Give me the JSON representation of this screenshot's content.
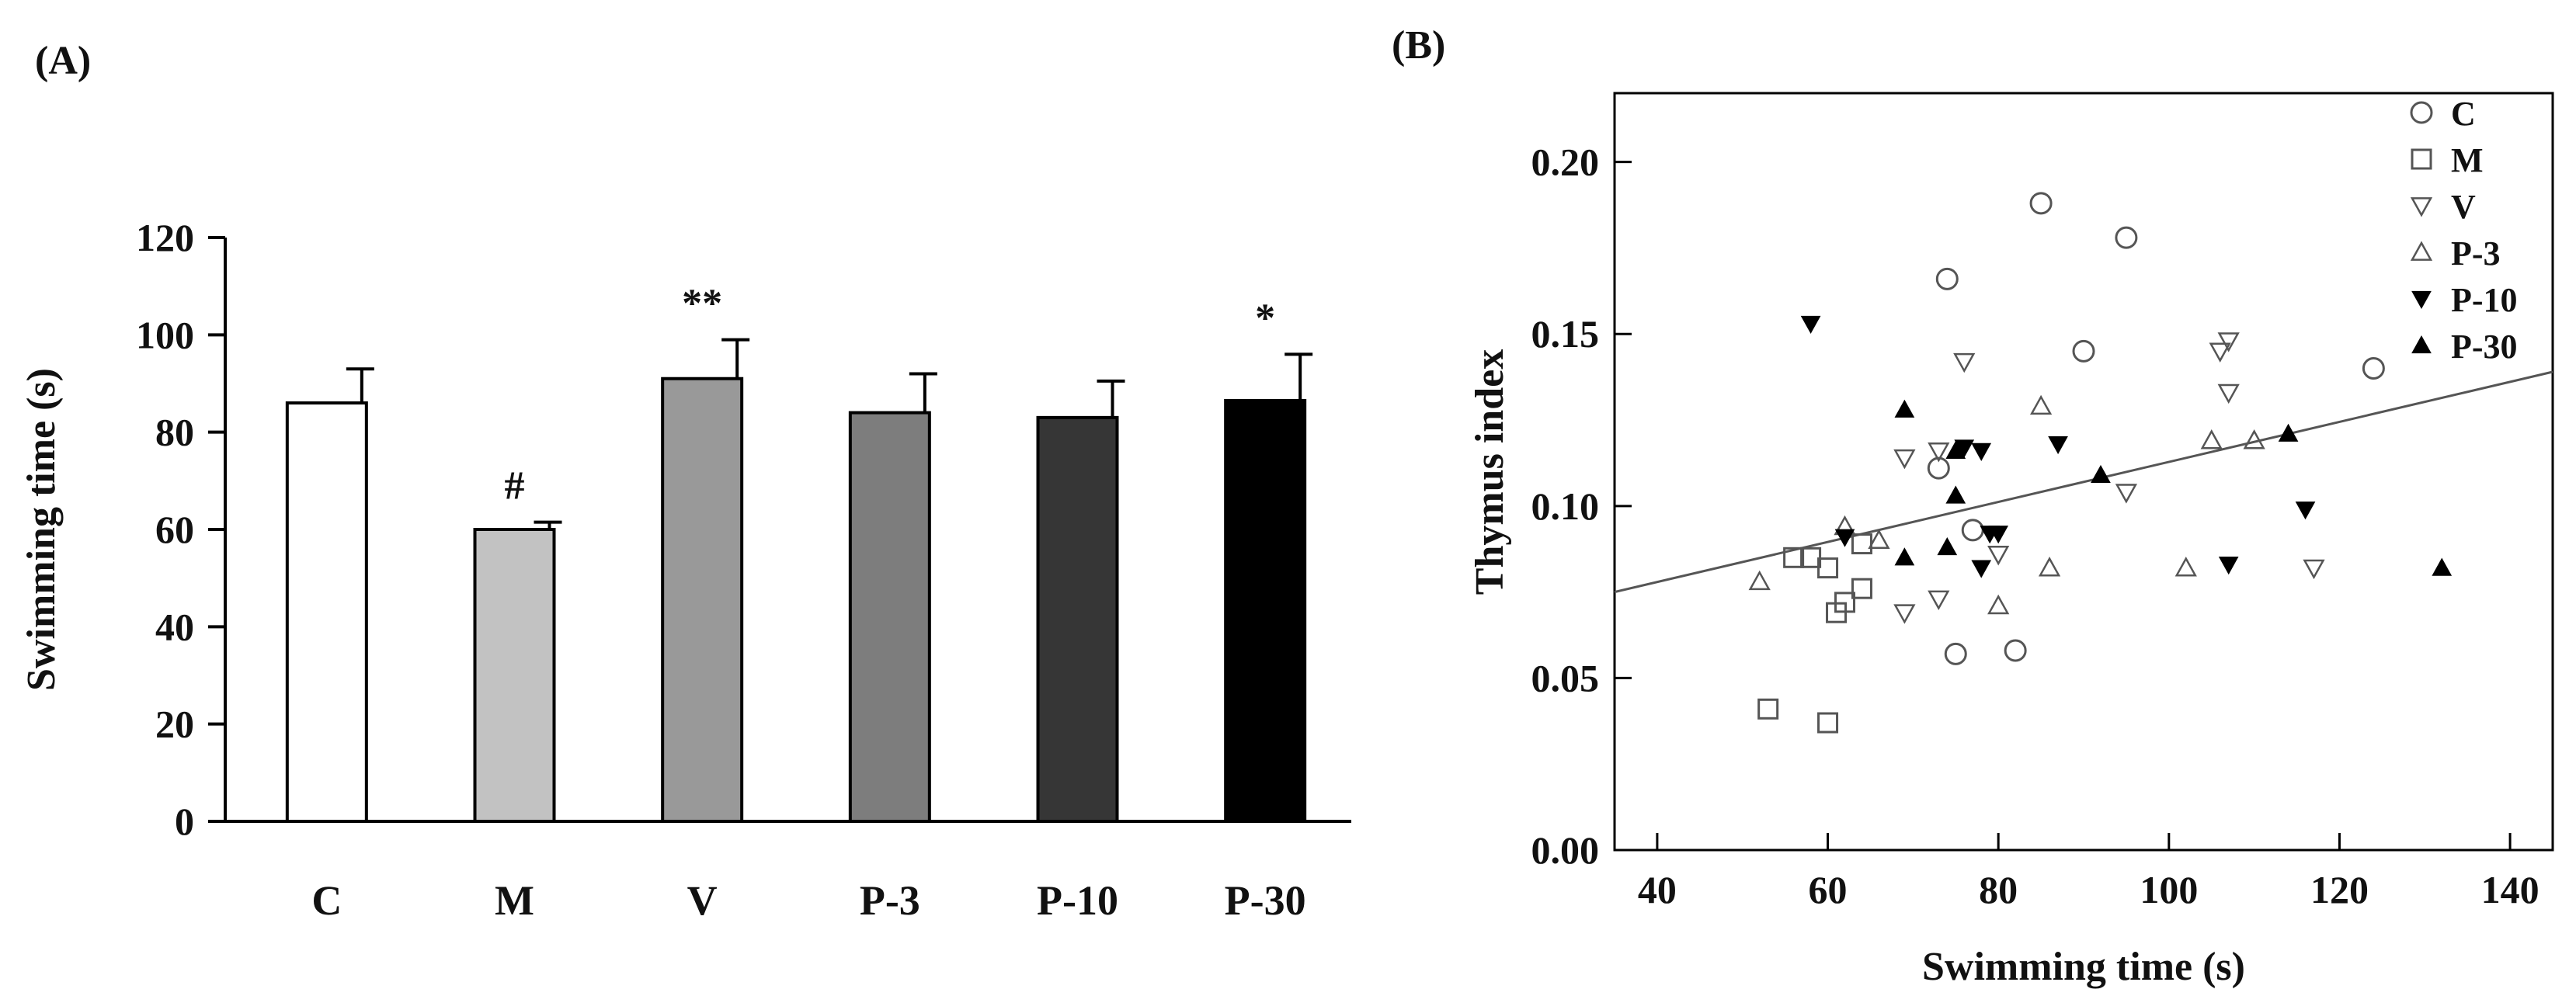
{
  "chart_data": [
    {
      "panel_label": "(A)",
      "type": "bar",
      "title": "",
      "xlabel": "",
      "ylabel": "Swimming time (s)",
      "ylim": [
        0,
        120
      ],
      "yticks": [
        0,
        20,
        40,
        60,
        80,
        100,
        120
      ],
      "categories": [
        "C",
        "M",
        "V",
        "P-3",
        "P-10",
        "P-30"
      ],
      "values": [
        86,
        60,
        91,
        84,
        83,
        86.5
      ],
      "errors": [
        7,
        1.5,
        8,
        8,
        7.5,
        9.5
      ],
      "fills": [
        "#ffffff",
        "#c2c2c2",
        "#999999",
        "#7d7d7d",
        "#363636",
        "#000000"
      ],
      "annotations": [
        "",
        "#",
        "**",
        "",
        "",
        "*"
      ]
    },
    {
      "panel_label": "(B)",
      "type": "scatter",
      "title": "",
      "xlabel": "Swimming time (s)",
      "ylabel": "Thymus index",
      "xlim": [
        35,
        145
      ],
      "ylim": [
        0,
        0.22
      ],
      "xticks": [
        40,
        60,
        80,
        100,
        120,
        140
      ],
      "yticks": [
        "0.00",
        "0.05",
        "0.10",
        "0.15",
        "0.20"
      ],
      "legend_position": "top-right",
      "series": [
        {
          "name": "C",
          "marker": "circle-open",
          "points": [
            [
              74,
              0.166
            ],
            [
              85,
              0.188
            ],
            [
              95,
              0.178
            ],
            [
              90,
              0.145
            ],
            [
              124,
              0.14
            ],
            [
              73,
              0.111
            ],
            [
              77,
              0.093
            ],
            [
              75,
              0.057
            ],
            [
              82,
              0.058
            ]
          ]
        },
        {
          "name": "M",
          "marker": "square-open",
          "points": [
            [
              56,
              0.085
            ],
            [
              58,
              0.085
            ],
            [
              60,
              0.082
            ],
            [
              64,
              0.089
            ],
            [
              62,
              0.072
            ],
            [
              64,
              0.076
            ],
            [
              61,
              0.069
            ],
            [
              53,
              0.041
            ],
            [
              60,
              0.037
            ]
          ]
        },
        {
          "name": "V",
          "marker": "triangle-down-open",
          "points": [
            [
              76,
              0.142
            ],
            [
              107,
              0.148
            ],
            [
              106,
              0.145
            ],
            [
              107,
              0.133
            ],
            [
              69,
              0.114
            ],
            [
              73,
              0.116
            ],
            [
              95,
              0.104
            ],
            [
              69,
              0.069
            ],
            [
              73,
              0.073
            ],
            [
              80,
              0.086
            ],
            [
              117,
              0.082
            ]
          ]
        },
        {
          "name": "P-3",
          "marker": "triangle-up-open",
          "points": [
            [
              52,
              0.078
            ],
            [
              62,
              0.094
            ],
            [
              66,
              0.09
            ],
            [
              85,
              0.129
            ],
            [
              86,
              0.082
            ],
            [
              80,
              0.071
            ],
            [
              105,
              0.119
            ],
            [
              110,
              0.119
            ],
            [
              102,
              0.082
            ]
          ]
        },
        {
          "name": "P-10",
          "marker": "triangle-down-filled",
          "points": [
            [
              58,
              0.153
            ],
            [
              62,
              0.091
            ],
            [
              76,
              0.117
            ],
            [
              78,
              0.116
            ],
            [
              87,
              0.118
            ],
            [
              79,
              0.092
            ],
            [
              80,
              0.092
            ],
            [
              78,
              0.082
            ],
            [
              116,
              0.099
            ],
            [
              107,
              0.083
            ]
          ]
        },
        {
          "name": "P-30",
          "marker": "triangle-up-filled",
          "points": [
            [
              69,
              0.128
            ],
            [
              75,
              0.116
            ],
            [
              75,
              0.103
            ],
            [
              74,
              0.088
            ],
            [
              69,
              0.085
            ],
            [
              92,
              0.109
            ],
            [
              114,
              0.121
            ],
            [
              132,
              0.082
            ]
          ]
        }
      ],
      "fit_line": {
        "x": [
          35,
          145
        ],
        "y": [
          0.075,
          0.139
        ]
      }
    }
  ]
}
